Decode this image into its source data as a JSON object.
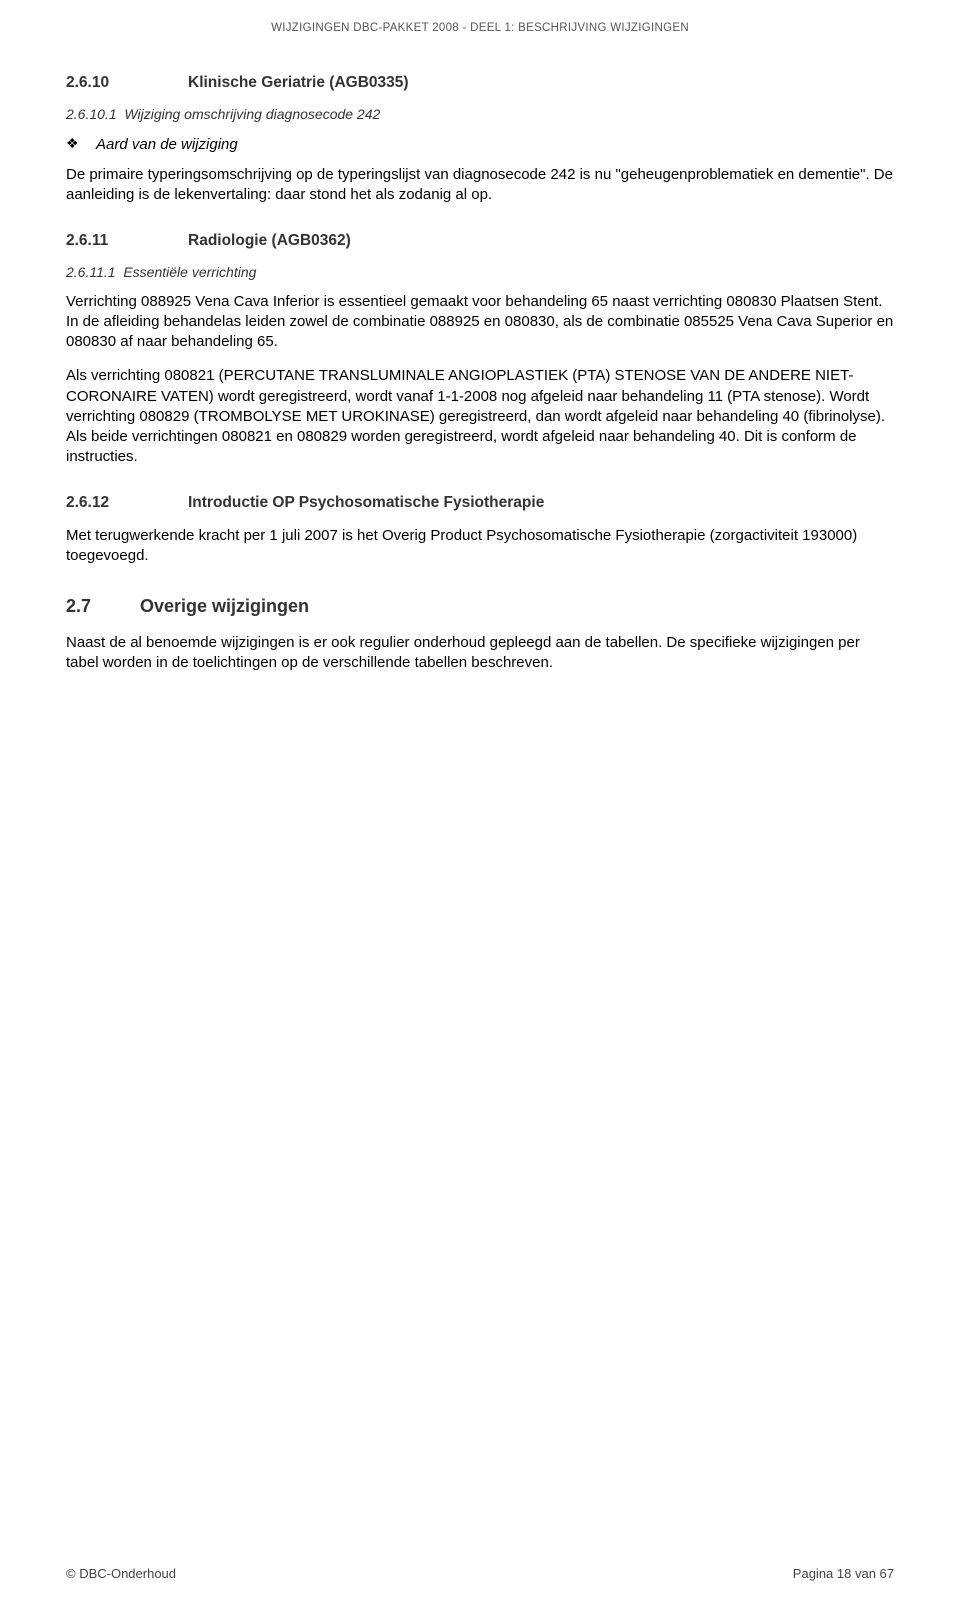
{
  "header": {
    "left_caps": "W",
    "left_rest": "IJZIGINGEN ",
    "mid1_caps": "DBC-",
    "mid1_rest": "PAKKET ",
    "year": "2008",
    "sep": "    -     ",
    "right1_caps": "D",
    "right1_rest": "EEL ",
    "right2": "1: B",
    "right3_rest": "ESCHRIJVING ",
    "right4_caps": "W",
    "right4_rest": "IJZIGINGEN"
  },
  "s2_6_10": {
    "num": "2.6.10",
    "title": "Klinische Geriatrie (AGB0335)",
    "sub_num": "2.6.10.1",
    "sub_title": "Wijziging omschrijving diagnosecode 242",
    "bullet": "Aard van de wijziging",
    "p1": "De primaire typeringsomschrijving op de typeringslijst van diagnosecode 242 is nu \"geheugenproblematiek en dementie\". De aanleiding is de lekenvertaling: daar stond het als zodanig al op."
  },
  "s2_6_11": {
    "num": "2.6.11",
    "title": "Radiologie (AGB0362)",
    "sub_num": "2.6.11.1",
    "sub_title": "Essentiële verrichting",
    "p1": "Verrichting 088925 Vena Cava Inferior is essentieel gemaakt voor behandeling 65 naast verrichting 080830 Plaatsen Stent. In de afleiding behandelas leiden zowel de combinatie 088925 en 080830, als de combinatie 085525 Vena Cava Superior en 080830 af naar behandeling 65.",
    "p2": "Als verrichting 080821 (PERCUTANE TRANSLUMINALE ANGIOPLASTIEK (PTA) STENOSE VAN DE ANDERE NIET-CORONAIRE VATEN) wordt geregistreerd, wordt vanaf 1-1-2008 nog afgeleid naar behandeling 11 (PTA stenose). Wordt verrichting 080829 (TROMBOLYSE MET UROKINASE) geregistreerd, dan wordt afgeleid naar behandeling 40 (fibrinolyse). Als beide verrichtingen 080821 en 080829 worden geregistreerd, wordt afgeleid naar behandeling 40. Dit is conform de instructies."
  },
  "s2_6_12": {
    "num": "2.6.12",
    "title": "Introductie OP Psychosomatische Fysiotherapie",
    "p1": "Met terugwerkende kracht per 1 juli 2007 is het Overig Product Psychosomatische Fysiotherapie (zorgactiviteit 193000) toegevoegd."
  },
  "s2_7": {
    "num": "2.7",
    "title": "Overige wijzigingen",
    "p1": "Naast de al benoemde wijzigingen is er ook regulier onderhoud gepleegd aan de tabellen. De specifieke wijzigingen per tabel worden in de toelichtingen op de verschillende tabellen beschreven."
  },
  "footer": {
    "left": "© DBC-Onderhoud",
    "right": "Pagina 18 van 67"
  }
}
